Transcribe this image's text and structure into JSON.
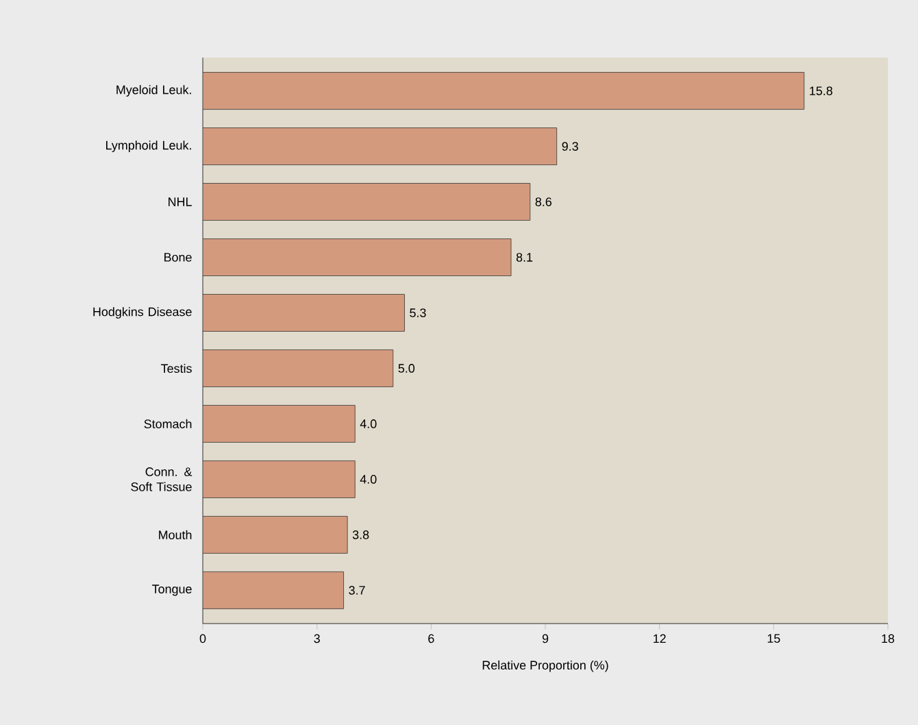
{
  "chart_data": {
    "type": "bar",
    "orientation": "horizontal",
    "xlabel": "Relative Proportion (%)",
    "categories": [
      "Myeloid Leuk.",
      "Lymphoid Leuk.",
      "NHL",
      "Bone",
      "Hodgkins Disease",
      "Testis",
      "Stomach",
      "Conn. & Soft Tissue",
      "Mouth",
      "Tongue"
    ],
    "values": [
      15.8,
      9.3,
      8.6,
      8.1,
      5.3,
      5.0,
      4.0,
      4.0,
      3.8,
      3.7
    ],
    "value_labels": [
      "15.8",
      "9.3",
      "8.6",
      "8.1",
      "5.3",
      "5.0",
      "4.0",
      "4.0",
      "3.8",
      "3.7"
    ],
    "color": "#d49a7e",
    "xlim": [
      0,
      18
    ],
    "xticks": [
      0,
      3,
      6,
      9,
      12,
      15,
      18
    ]
  }
}
